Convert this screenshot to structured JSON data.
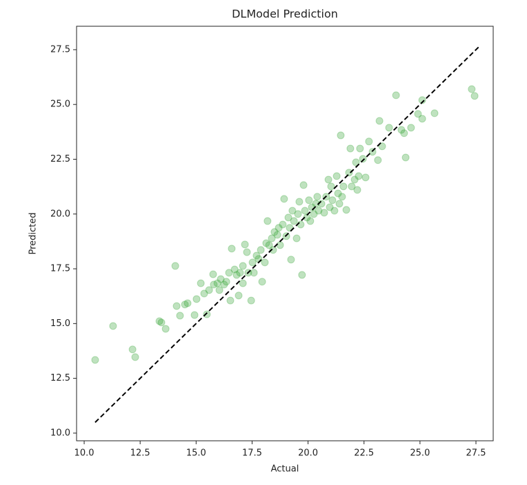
{
  "chart_data": {
    "type": "scatter",
    "title": "DLModel Prediction",
    "xlabel": "Actual",
    "ylabel": "Predicted",
    "xlim": [
      9.66,
      28.27
    ],
    "ylim": [
      9.65,
      28.57
    ],
    "xticks": [
      {
        "value": 10,
        "label": "10.0"
      },
      12.5,
      {
        "value": 15,
        "label": "15.0"
      },
      17.5,
      {
        "value": 20,
        "label": "20.0"
      },
      22.5,
      {
        "value": 25,
        "label": "25.0"
      },
      27.5
    ],
    "yticks": [
      {
        "value": 10,
        "label": "10.0"
      },
      12.5,
      {
        "value": 15,
        "label": "15.0"
      },
      17.5,
      {
        "value": 20,
        "label": "20.0"
      },
      22.5,
      {
        "value": 25,
        "label": "25.0"
      },
      27.5
    ],
    "grid": false,
    "series": [
      {
        "color": "#2ca02c",
        "opacity": 0.3,
        "x": [
          10.49,
          11.29,
          12.16,
          12.28,
          13.36,
          13.45,
          13.64,
          14.07,
          14.13,
          14.28,
          14.5,
          14.62,
          14.93,
          15.02,
          15.21,
          15.36,
          15.48,
          15.58,
          15.76,
          15.79,
          15.95,
          16.04,
          16.1,
          16.25,
          16.35,
          16.47,
          16.53,
          16.59,
          16.72,
          16.81,
          16.9,
          16.96,
          17.09,
          17.09,
          17.18,
          17.27,
          17.33,
          17.46,
          17.52,
          17.58,
          17.7,
          17.79,
          17.89,
          17.95,
          18.07,
          18.13,
          18.19,
          18.26,
          18.38,
          18.44,
          18.5,
          18.63,
          18.69,
          18.75,
          18.87,
          18.93,
          19.03,
          19.12,
          19.18,
          19.24,
          19.3,
          19.37,
          19.49,
          19.55,
          19.61,
          19.67,
          19.73,
          19.8,
          19.86,
          19.95,
          20.04,
          20.1,
          20.17,
          20.26,
          20.35,
          20.41,
          20.47,
          20.6,
          20.72,
          20.81,
          20.91,
          20.97,
          21.03,
          21.09,
          21.18,
          21.28,
          21.34,
          21.4,
          21.46,
          21.52,
          21.58,
          21.71,
          21.83,
          21.89,
          21.95,
          22.08,
          22.14,
          22.2,
          22.26,
          22.32,
          22.45,
          22.57,
          22.72,
          22.88,
          23.12,
          23.19,
          23.31,
          23.62,
          23.93,
          24.17,
          24.29,
          24.36,
          24.6,
          24.91,
          25.1,
          25.1,
          25.65,
          27.31,
          27.44
        ],
        "values": [
          13.34,
          14.89,
          13.82,
          13.47,
          15.11,
          15.05,
          14.76,
          17.63,
          15.8,
          15.36,
          15.87,
          15.93,
          15.39,
          16.12,
          16.84,
          16.37,
          15.42,
          16.53,
          17.25,
          16.78,
          16.84,
          16.53,
          17.03,
          16.78,
          16.91,
          17.32,
          16.05,
          18.42,
          17.47,
          17.22,
          16.28,
          17.32,
          17.63,
          16.84,
          18.61,
          18.26,
          17.32,
          16.05,
          17.79,
          17.32,
          18.1,
          17.95,
          18.36,
          16.91,
          17.79,
          18.67,
          19.68,
          18.58,
          18.89,
          18.36,
          19.18,
          19.05,
          19.37,
          18.58,
          19.52,
          20.69,
          18.99,
          19.84,
          19.37,
          17.92,
          20.15,
          19.68,
          18.89,
          20.0,
          20.56,
          19.52,
          17.22,
          21.32,
          20.15,
          19.84,
          20.63,
          19.68,
          20.31,
          20.0,
          20.47,
          20.79,
          20.15,
          20.47,
          20.06,
          20.79,
          21.57,
          20.31,
          21.26,
          20.63,
          20.15,
          21.73,
          20.94,
          20.47,
          23.59,
          20.79,
          21.26,
          20.19,
          21.89,
          22.99,
          21.26,
          21.57,
          22.36,
          21.1,
          21.73,
          22.99,
          22.52,
          21.67,
          23.31,
          22.84,
          22.46,
          24.25,
          23.09,
          23.94,
          25.42,
          23.84,
          23.69,
          22.58,
          23.94,
          24.57,
          25.2,
          24.35,
          24.6,
          25.7,
          25.39
        ]
      }
    ],
    "reference_line": {
      "x": [
        10.49,
        27.7
      ],
      "values": [
        10.49,
        27.7
      ],
      "color": "#000000",
      "dashed": true
    }
  }
}
